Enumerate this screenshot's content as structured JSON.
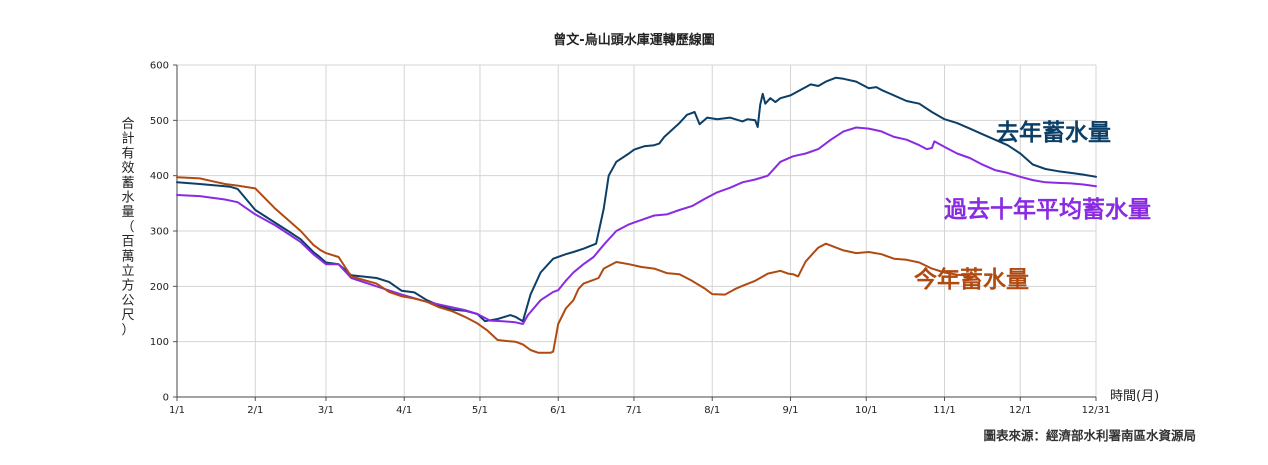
{
  "chart_data": {
    "type": "line",
    "title": "曾文-烏山頭水庫運轉歷線圖",
    "ylabel": "合計有效蓄水量（百萬立方公尺）",
    "xlabel": "時間(月)",
    "source": "圖表來源：經濟部水利署南區水資源局",
    "ylim": [
      0,
      600
    ],
    "yticks": [
      0,
      100,
      200,
      300,
      400,
      500,
      600
    ],
    "xlim": [
      1,
      365
    ],
    "xticks": [
      {
        "day": 1,
        "label": "1/1"
      },
      {
        "day": 32,
        "label": "2/1"
      },
      {
        "day": 60,
        "label": "3/1"
      },
      {
        "day": 91,
        "label": "4/1"
      },
      {
        "day": 121,
        "label": "5/1"
      },
      {
        "day": 152,
        "label": "6/1"
      },
      {
        "day": 182,
        "label": "7/1"
      },
      {
        "day": 213,
        "label": "8/1"
      },
      {
        "day": 244,
        "label": "9/1"
      },
      {
        "day": 274,
        "label": "10/1"
      },
      {
        "day": 305,
        "label": "11/1"
      },
      {
        "day": 335,
        "label": "12/1"
      },
      {
        "day": 365,
        "label": "12/31"
      }
    ],
    "grid": true,
    "series": [
      {
        "name": "去年蓄水量",
        "color": "#0d3f66",
        "points": [
          [
            1,
            388
          ],
          [
            10,
            385
          ],
          [
            20,
            381
          ],
          [
            22,
            380
          ],
          [
            25,
            376
          ],
          [
            32,
            338
          ],
          [
            45,
            300
          ],
          [
            50,
            285
          ],
          [
            55,
            262
          ],
          [
            57,
            255
          ],
          [
            60,
            243
          ],
          [
            65,
            240
          ],
          [
            70,
            220
          ],
          [
            80,
            215
          ],
          [
            85,
            208
          ],
          [
            90,
            192
          ],
          [
            95,
            189
          ],
          [
            100,
            175
          ],
          [
            105,
            165
          ],
          [
            110,
            158
          ],
          [
            115,
            156
          ],
          [
            120,
            150
          ],
          [
            123,
            137
          ],
          [
            128,
            141
          ],
          [
            133,
            148
          ],
          [
            135,
            145
          ],
          [
            138,
            137
          ],
          [
            141,
            185
          ],
          [
            145,
            225
          ],
          [
            150,
            250
          ],
          [
            155,
            258
          ],
          [
            158,
            262
          ],
          [
            162,
            268
          ],
          [
            167,
            277
          ],
          [
            170,
            340
          ],
          [
            172,
            400
          ],
          [
            175,
            425
          ],
          [
            180,
            440
          ],
          [
            182,
            447
          ],
          [
            186,
            453
          ],
          [
            190,
            455
          ],
          [
            192,
            458
          ],
          [
            194,
            470
          ],
          [
            200,
            495
          ],
          [
            203,
            510
          ],
          [
            206,
            515
          ],
          [
            208,
            493
          ],
          [
            211,
            505
          ],
          [
            215,
            502
          ],
          [
            220,
            505
          ],
          [
            225,
            498
          ],
          [
            227,
            502
          ],
          [
            230,
            500
          ],
          [
            231,
            488
          ],
          [
            232,
            528
          ],
          [
            233,
            548
          ],
          [
            234,
            530
          ],
          [
            236,
            540
          ],
          [
            238,
            533
          ],
          [
            240,
            540
          ],
          [
            244,
            545
          ],
          [
            248,
            555
          ],
          [
            250,
            560
          ],
          [
            252,
            565
          ],
          [
            255,
            562
          ],
          [
            258,
            570
          ],
          [
            262,
            577
          ],
          [
            265,
            575
          ],
          [
            270,
            570
          ],
          [
            275,
            558
          ],
          [
            278,
            560
          ],
          [
            280,
            555
          ],
          [
            285,
            545
          ],
          [
            290,
            535
          ],
          [
            295,
            530
          ],
          [
            300,
            515
          ],
          [
            305,
            502
          ],
          [
            310,
            495
          ],
          [
            315,
            485
          ],
          [
            320,
            475
          ],
          [
            325,
            465
          ],
          [
            330,
            455
          ],
          [
            335,
            440
          ],
          [
            340,
            420
          ],
          [
            345,
            412
          ],
          [
            350,
            408
          ],
          [
            355,
            405
          ],
          [
            360,
            402
          ],
          [
            365,
            398
          ]
        ]
      },
      {
        "name": "過去十年平均蓄水量",
        "color": "#8a2be2",
        "points": [
          [
            1,
            365
          ],
          [
            10,
            363
          ],
          [
            20,
            357
          ],
          [
            25,
            352
          ],
          [
            32,
            330
          ],
          [
            40,
            310
          ],
          [
            50,
            280
          ],
          [
            55,
            258
          ],
          [
            60,
            240
          ],
          [
            65,
            240
          ],
          [
            70,
            215
          ],
          [
            80,
            200
          ],
          [
            90,
            185
          ],
          [
            100,
            172
          ],
          [
            110,
            162
          ],
          [
            115,
            157
          ],
          [
            120,
            150
          ],
          [
            125,
            138
          ],
          [
            130,
            137
          ],
          [
            135,
            135
          ],
          [
            138,
            132
          ],
          [
            140,
            148
          ],
          [
            145,
            175
          ],
          [
            150,
            190
          ],
          [
            152,
            193
          ],
          [
            155,
            210
          ],
          [
            158,
            225
          ],
          [
            162,
            240
          ],
          [
            166,
            253
          ],
          [
            170,
            275
          ],
          [
            175,
            300
          ],
          [
            180,
            312
          ],
          [
            185,
            320
          ],
          [
            190,
            328
          ],
          [
            195,
            330
          ],
          [
            200,
            338
          ],
          [
            205,
            345
          ],
          [
            210,
            358
          ],
          [
            215,
            370
          ],
          [
            220,
            378
          ],
          [
            225,
            388
          ],
          [
            230,
            393
          ],
          [
            235,
            400
          ],
          [
            240,
            425
          ],
          [
            245,
            435
          ],
          [
            250,
            440
          ],
          [
            255,
            448
          ],
          [
            260,
            465
          ],
          [
            265,
            480
          ],
          [
            270,
            487
          ],
          [
            275,
            485
          ],
          [
            280,
            480
          ],
          [
            285,
            470
          ],
          [
            290,
            465
          ],
          [
            295,
            455
          ],
          [
            298,
            448
          ],
          [
            300,
            450
          ],
          [
            301,
            462
          ],
          [
            305,
            452
          ],
          [
            310,
            440
          ],
          [
            315,
            432
          ],
          [
            320,
            420
          ],
          [
            325,
            410
          ],
          [
            330,
            405
          ],
          [
            335,
            398
          ],
          [
            340,
            392
          ],
          [
            345,
            388
          ],
          [
            350,
            387
          ],
          [
            355,
            386
          ],
          [
            360,
            384
          ],
          [
            365,
            381
          ]
        ]
      },
      {
        "name": "今年蓄水量",
        "color": "#b04a12",
        "points": [
          [
            1,
            397
          ],
          [
            10,
            395
          ],
          [
            15,
            390
          ],
          [
            20,
            385
          ],
          [
            25,
            382
          ],
          [
            32,
            377
          ],
          [
            40,
            340
          ],
          [
            50,
            300
          ],
          [
            55,
            275
          ],
          [
            58,
            265
          ],
          [
            60,
            260
          ],
          [
            65,
            253
          ],
          [
            70,
            218
          ],
          [
            80,
            205
          ],
          [
            85,
            190
          ],
          [
            90,
            182
          ],
          [
            95,
            178
          ],
          [
            100,
            172
          ],
          [
            105,
            162
          ],
          [
            110,
            155
          ],
          [
            115,
            145
          ],
          [
            120,
            133
          ],
          [
            124,
            120
          ],
          [
            128,
            103
          ],
          [
            132,
            101
          ],
          [
            135,
            100
          ],
          [
            138,
            95
          ],
          [
            141,
            85
          ],
          [
            144,
            80
          ],
          [
            147,
            80
          ],
          [
            149,
            80
          ],
          [
            150,
            82
          ],
          [
            152,
            132
          ],
          [
            155,
            160
          ],
          [
            158,
            175
          ],
          [
            160,
            195
          ],
          [
            162,
            205
          ],
          [
            165,
            210
          ],
          [
            168,
            215
          ],
          [
            170,
            232
          ],
          [
            175,
            244
          ],
          [
            180,
            240
          ],
          [
            185,
            235
          ],
          [
            190,
            232
          ],
          [
            195,
            224
          ],
          [
            200,
            222
          ],
          [
            205,
            210
          ],
          [
            210,
            196
          ],
          [
            213,
            186
          ],
          [
            218,
            185
          ],
          [
            222,
            195
          ],
          [
            225,
            201
          ],
          [
            230,
            210
          ],
          [
            235,
            223
          ],
          [
            240,
            228
          ],
          [
            243,
            223
          ],
          [
            245,
            222
          ],
          [
            247,
            218
          ],
          [
            250,
            245
          ],
          [
            255,
            270
          ],
          [
            258,
            277
          ],
          [
            262,
            270
          ],
          [
            265,
            265
          ],
          [
            270,
            260
          ],
          [
            275,
            262
          ],
          [
            280,
            258
          ],
          [
            285,
            250
          ],
          [
            290,
            248
          ],
          [
            295,
            243
          ],
          [
            300,
            232
          ],
          [
            305,
            225
          ],
          [
            310,
            221
          ],
          [
            313,
            220
          ]
        ]
      }
    ],
    "series_labels": [
      "去年蓄水量",
      "過去十年平均蓄水量",
      "今年蓄水量"
    ]
  }
}
